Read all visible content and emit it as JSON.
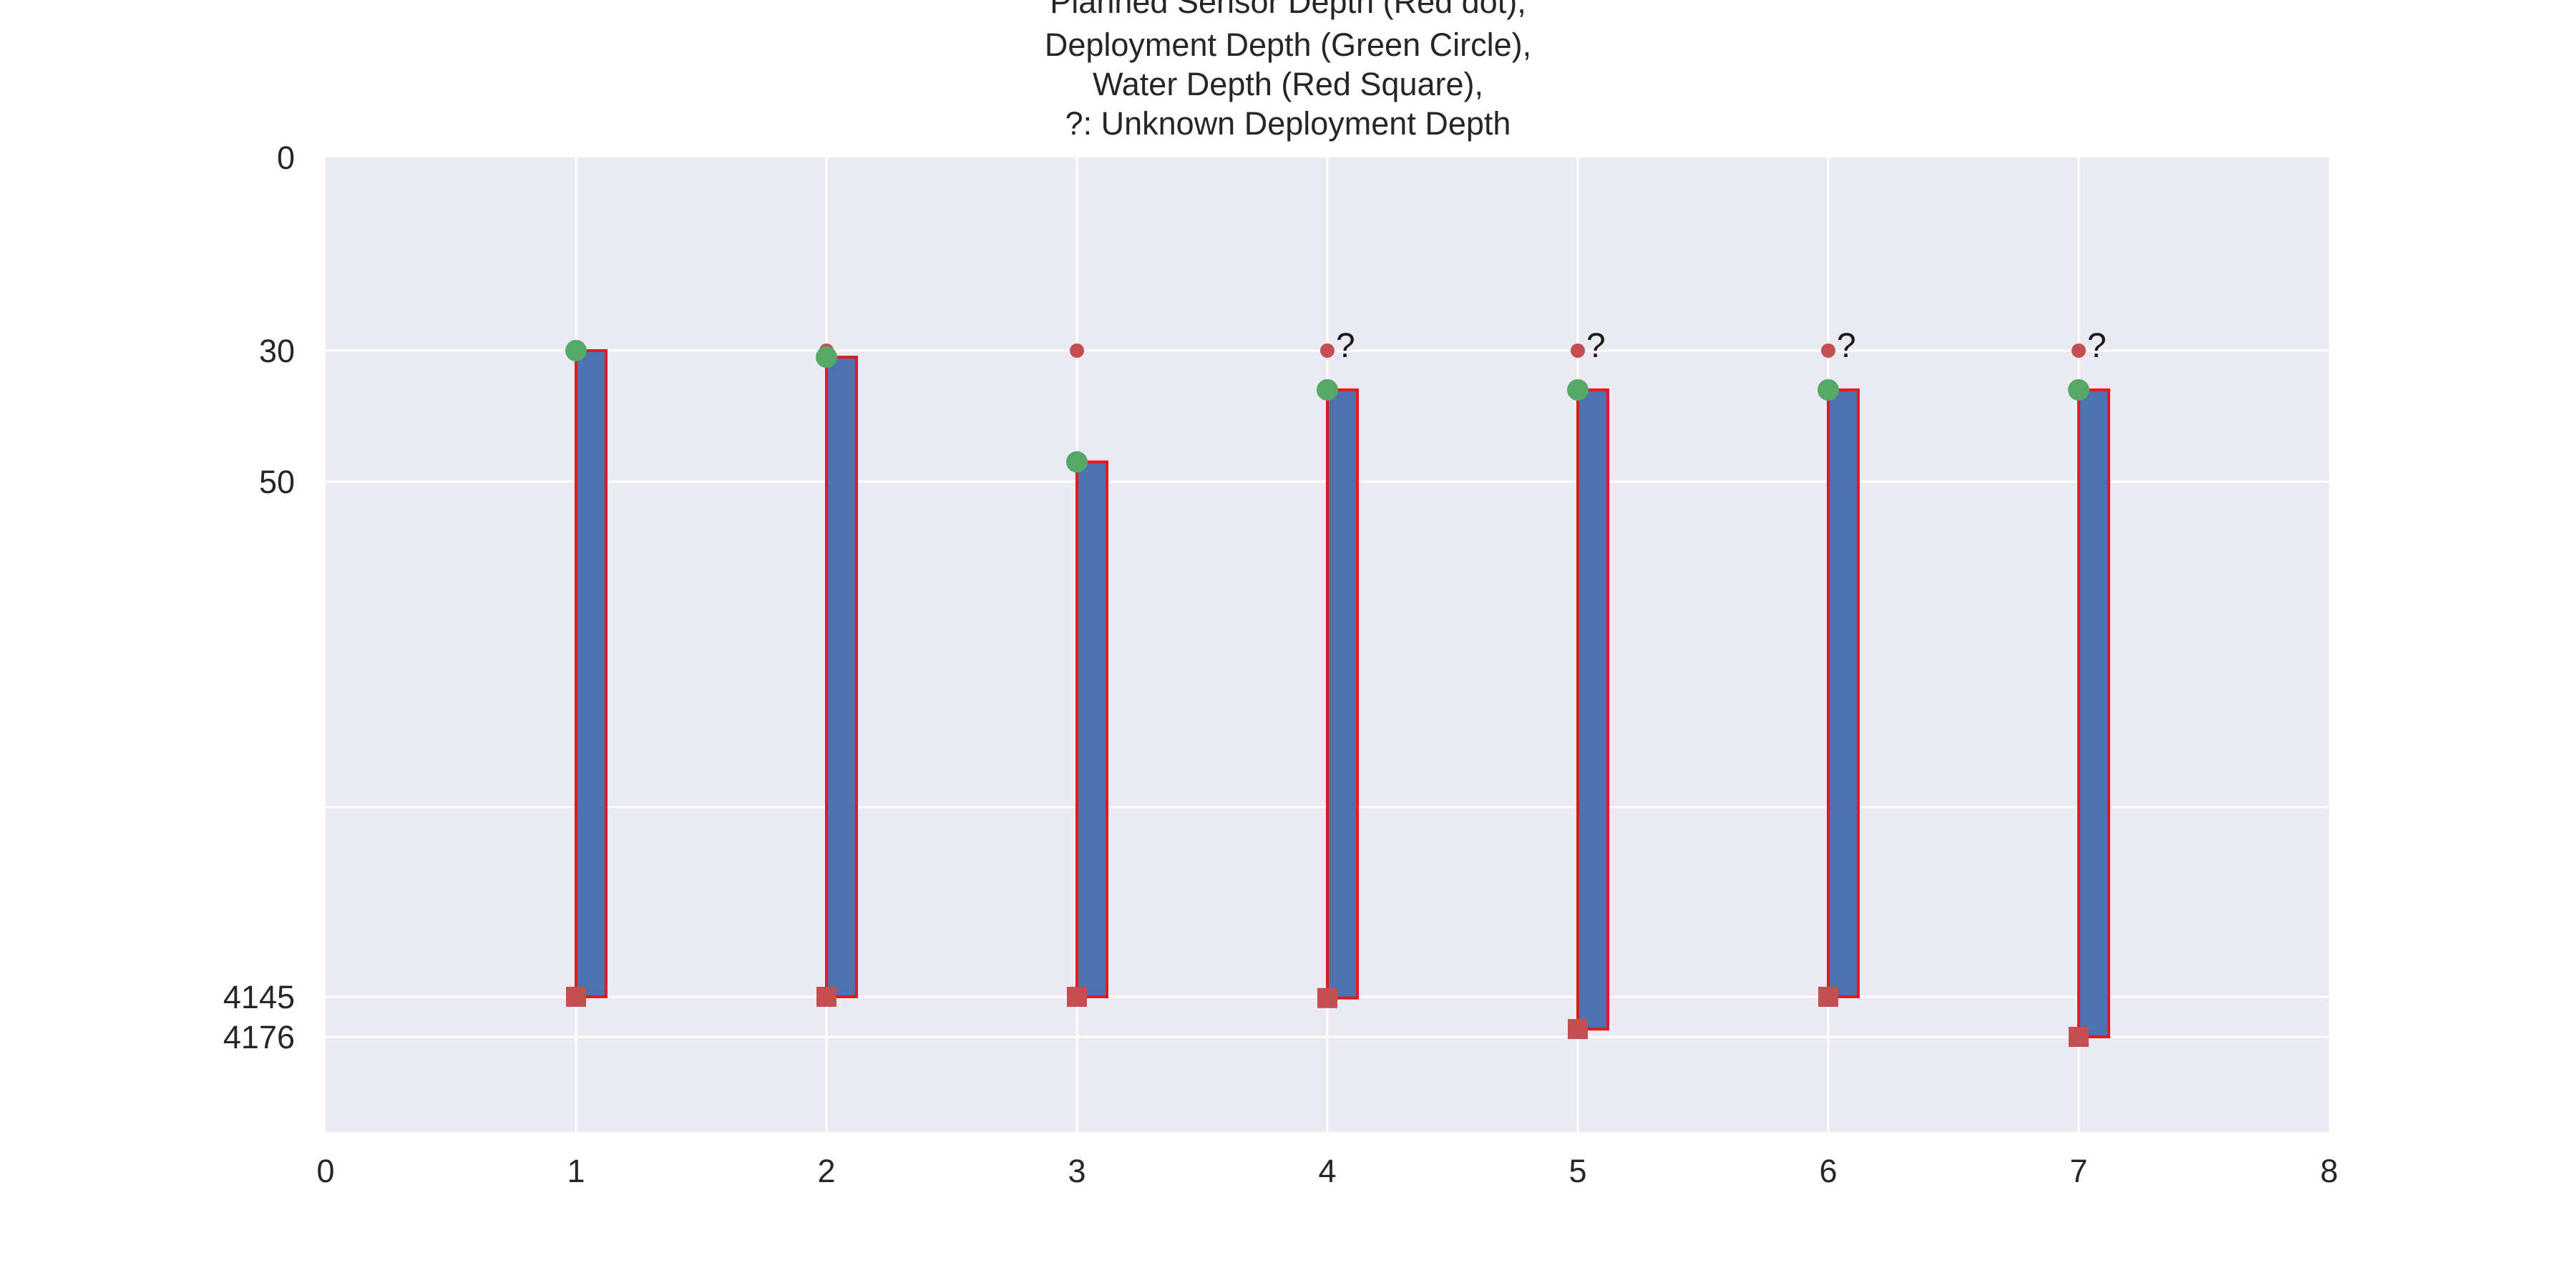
{
  "chart_data": {
    "type": "bar",
    "title": [
      "Planned Sensor Depth (Red dot),",
      "Deployment Depth (Green Circle),",
      "Water Depth (Red Square),",
      "?: Unknown Deployment Depth"
    ],
    "xlabel": "",
    "ylabel": "",
    "xlim": [
      0,
      8
    ],
    "x_ticks": [
      "0",
      "1",
      "2",
      "3",
      "4",
      "5",
      "6",
      "7",
      "8"
    ],
    "y_ticks": [
      "0",
      "30",
      "50",
      "",
      "4145",
      "4176"
    ],
    "y_axis_inverted": true,
    "y_axis_note": "non-linear (broken) scale between 50 and 4145",
    "grid": true,
    "colors": {
      "plot_background": "#eaeaf2",
      "grid": "#ffffff",
      "bar_fill": "#4c72b0",
      "bar_edge": "#e31a1c",
      "planned_dot": "#c44e52",
      "deployment_circle": "#55a868",
      "water_square": "#c44e52"
    },
    "series": [
      {
        "name": "Planned Sensor Depth",
        "marker": "red dot",
        "x": [
          1,
          2,
          3,
          4,
          5,
          6,
          7
        ],
        "values": [
          30,
          30,
          30,
          30,
          30,
          30,
          30
        ]
      },
      {
        "name": "Deployment Depth",
        "marker": "green circle",
        "x": [
          1,
          2,
          3,
          4,
          5,
          6,
          7
        ],
        "values": [
          30,
          31,
          47,
          36,
          36,
          36,
          36
        ]
      },
      {
        "name": "Water Depth",
        "marker": "red square",
        "x": [
          1,
          2,
          3,
          4,
          5,
          6,
          7
        ],
        "values": [
          4145,
          4145,
          4145,
          4146,
          4170,
          4145,
          4176
        ]
      }
    ],
    "unknown_deployment": {
      "label": "?",
      "x": [
        4,
        5,
        6,
        7
      ]
    }
  }
}
